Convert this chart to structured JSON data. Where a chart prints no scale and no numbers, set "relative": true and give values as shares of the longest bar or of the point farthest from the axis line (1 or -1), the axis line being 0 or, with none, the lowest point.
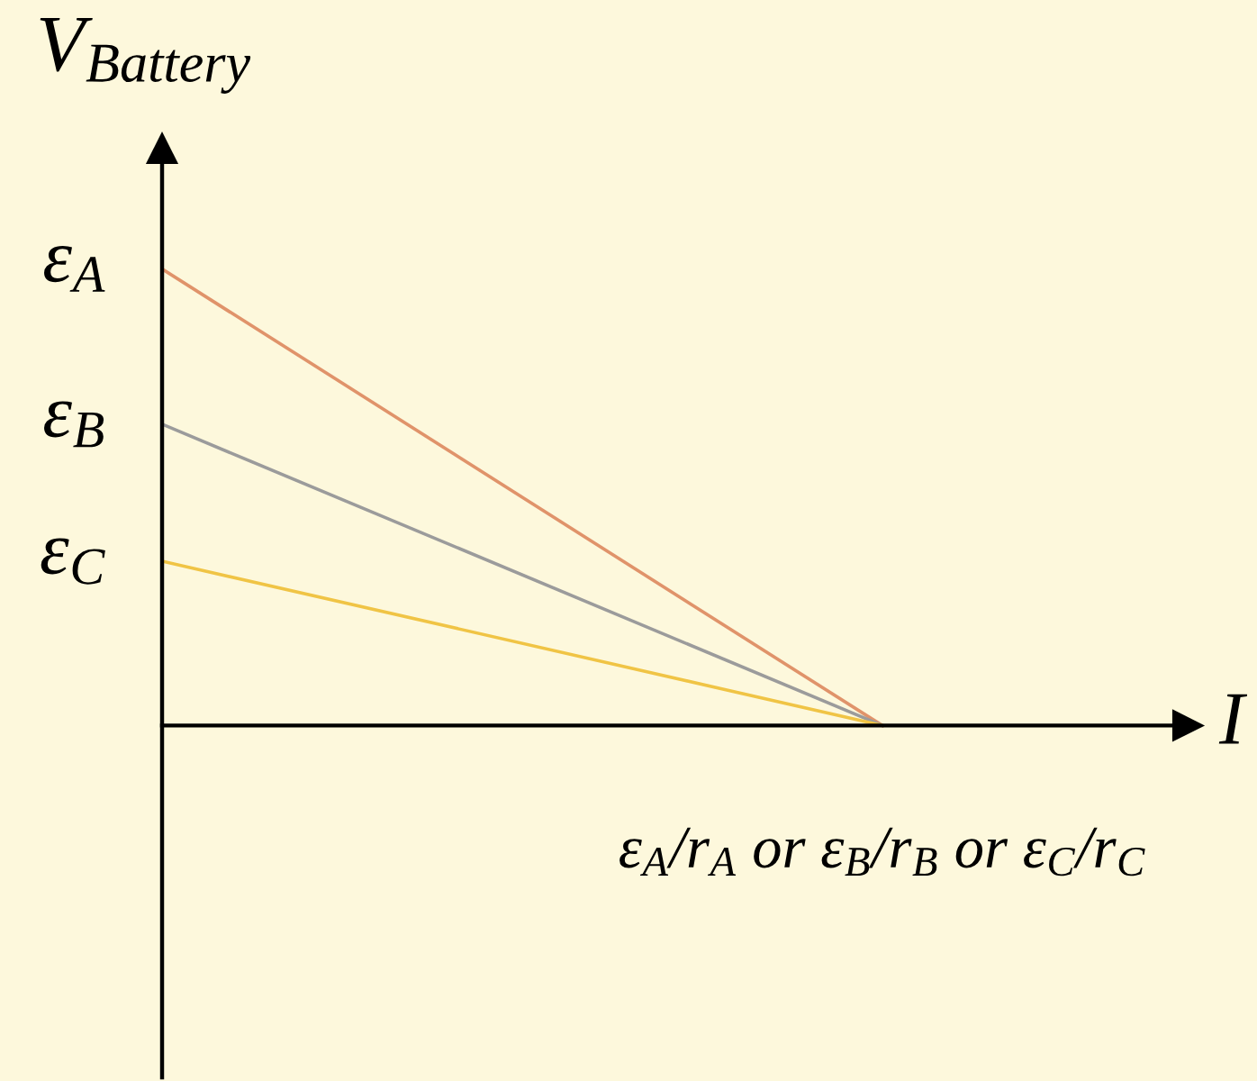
{
  "chart_data": {
    "type": "line",
    "relative": true,
    "ylabel": "V$_{Battery}$",
    "xlabel": "I",
    "categories": [
      null,
      "ε$_{A}$/r$_{A}$ or ε$_{B}$/r$_{B}$ or ε$_{C}$/r$_{C}$"
    ],
    "series": [
      {
        "name": "ε$_{A}$",
        "color": "#e0936a",
        "values": [
          1,
          0
        ]
      },
      {
        "name": "ε$_{B}$",
        "color": "#9b9b9b",
        "values": [
          0.66,
          0
        ]
      },
      {
        "name": "ε$_{C}$",
        "color": "#f0c445",
        "values": [
          0.36,
          0
        ]
      }
    ],
    "grid": false,
    "legend": false,
    "marker": "none",
    "line_style": "solid"
  }
}
